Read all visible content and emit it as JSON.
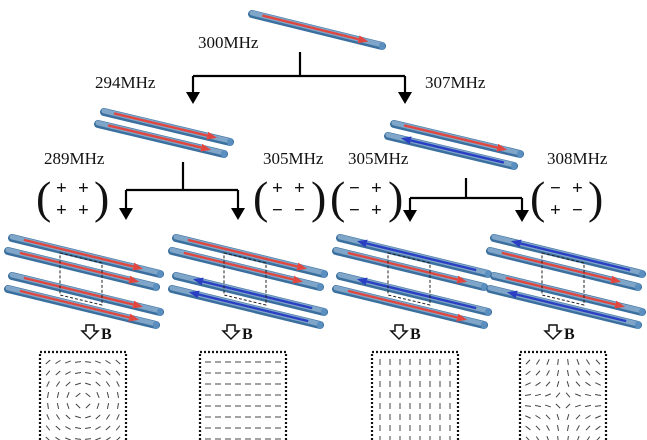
{
  "colors": {
    "rod_body": "#7fa6c9",
    "rod_cap": "#5a8fbf",
    "current_red": "#e2473f",
    "current_blue": "#2a3fc4",
    "line": "#000000"
  },
  "top": {
    "freq": "300MHz",
    "currents": [
      "red"
    ]
  },
  "level2": [
    {
      "freq": "294MHz",
      "currents": [
        "red",
        "red"
      ]
    },
    {
      "freq": "307MHz",
      "currents": [
        "red",
        "blue"
      ]
    }
  ],
  "level3": [
    {
      "freq": "289MHz",
      "matrix": [
        [
          "+",
          "+"
        ],
        [
          "+",
          "+"
        ]
      ],
      "currents": [
        "red",
        "red",
        "red",
        "red"
      ],
      "field": "vortex"
    },
    {
      "freq": "305MHz",
      "matrix": [
        [
          "+",
          "+"
        ],
        [
          "−",
          "−"
        ]
      ],
      "currents": [
        "red",
        "red",
        "blue",
        "blue"
      ],
      "field": "horizontal"
    },
    {
      "freq": "305MHz",
      "matrix": [
        [
          "−",
          "+"
        ],
        [
          "−",
          "+"
        ]
      ],
      "currents": [
        "blue",
        "red",
        "blue",
        "red"
      ],
      "field": "vertical"
    },
    {
      "freq": "308MHz",
      "matrix": [
        [
          "−",
          "+"
        ],
        [
          "+",
          "−"
        ]
      ],
      "currents": [
        "blue",
        "red",
        "red",
        "blue"
      ],
      "field": "quadrupole"
    }
  ],
  "field_label": "B",
  "field_label_icon": "down-arrow-icon"
}
